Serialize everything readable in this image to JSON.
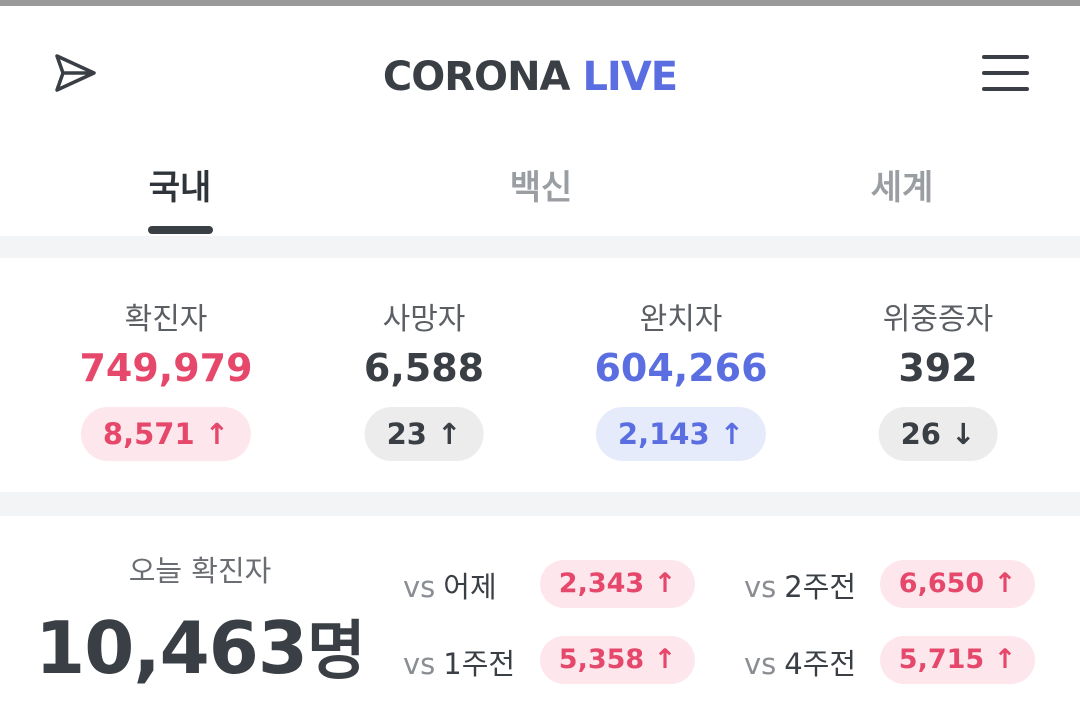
{
  "header": {
    "title_a": "CORONA",
    "title_b": "LIVE"
  },
  "tabs": [
    "국내",
    "백신",
    "세계"
  ],
  "stats": [
    {
      "label": "확진자",
      "value": "749,979",
      "change": "8,571",
      "arrow": "↑"
    },
    {
      "label": "사망자",
      "value": "6,588",
      "change": "23",
      "arrow": "↑"
    },
    {
      "label": "완치자",
      "value": "604,266",
      "change": "2,143",
      "arrow": "↑"
    },
    {
      "label": "위중증자",
      "value": "392",
      "change": "26",
      "arrow": "↓"
    }
  ],
  "today": {
    "label": "오늘 확진자",
    "value": "10,463",
    "unit": "명",
    "compare": [
      {
        "prefix": "vs",
        "label": "어제",
        "value": "2,343",
        "arrow": "↑"
      },
      {
        "prefix": "vs",
        "label": "2주전",
        "value": "6,650",
        "arrow": "↑"
      },
      {
        "prefix": "vs",
        "label": "1주전",
        "value": "5,358",
        "arrow": "↑"
      },
      {
        "prefix": "vs",
        "label": "4주전",
        "value": "5,715",
        "arrow": "↑"
      }
    ]
  }
}
